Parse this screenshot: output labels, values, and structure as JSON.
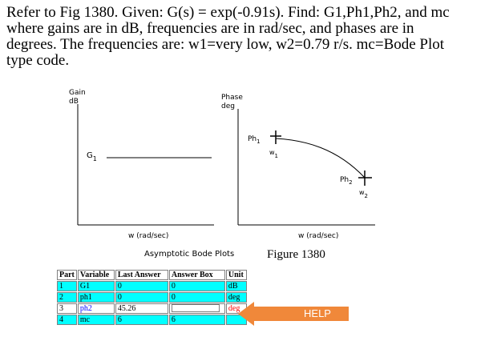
{
  "problem": {
    "lines": [
      "Refer to Fig 1380. Given: G(s) = exp(-0.91s). Find: G1,Ph1,Ph2, and mc",
      "where gains are in dB, frequencies are in rad/sec, and phases are in",
      "degrees. The frequencies are: w1=very low, w2=0.79 r/s. mc=Bode Plot",
      "type code."
    ]
  },
  "figure": {
    "gain_axis_label_1": "Gain",
    "gain_axis_label_2": "dB",
    "phase_axis_label_1": "Phase",
    "phase_axis_label_2": "deg",
    "g1_label": "G",
    "g1_sub": "1",
    "ph1_label": "Ph",
    "ph1_sub": "1",
    "w1_label": "w",
    "w1_sub": "1",
    "ph2_label": "Ph",
    "ph2_sub": "2",
    "w2_label": "w",
    "w2_sub": "2",
    "x_label_left": "w (rad/sec)",
    "x_label_right": "w (rad/sec)",
    "caption_left": "Asymptotic Bode Plots",
    "caption_right": "Figure 1380"
  },
  "table": {
    "headers": {
      "part": "Part",
      "variable": "Variable",
      "last": "Last Answer",
      "answer": "Answer Box",
      "unit": "Unit"
    },
    "rows": [
      {
        "part": "1",
        "variable": "G1",
        "last": "0",
        "answer": "0",
        "unit": "dB"
      },
      {
        "part": "2",
        "variable": "ph1",
        "last": "0",
        "answer": "0",
        "unit": "deg"
      },
      {
        "part": "3",
        "variable": "ph2",
        "last": "45.26",
        "answer": "",
        "unit": "deg"
      },
      {
        "part": "4",
        "variable": "mc",
        "last": "6",
        "answer": "6",
        "unit": ""
      }
    ]
  },
  "help": {
    "label": "HELP",
    "color": "#f0883a"
  }
}
